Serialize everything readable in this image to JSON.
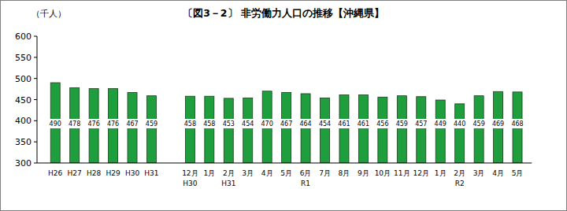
{
  "chart_data": {
    "type": "bar",
    "title": "〔図3－2〕 非労働力人口の推移【沖縄県】",
    "y_label": "（千人）",
    "categories": [
      "H26",
      "H27",
      "H28",
      "H29",
      "H30",
      "H31",
      null,
      "12月\nH30",
      "1月",
      "2月\nH31",
      "3月",
      "4月",
      "5月",
      "6月\nR1",
      "7月",
      "8月",
      "9月",
      "10月",
      "11月",
      "12月",
      "1月",
      "2月\nR2",
      "3月",
      "4月",
      "5月"
    ],
    "values": [
      490,
      478,
      476,
      476,
      467,
      459,
      null,
      458,
      458,
      453,
      454,
      470,
      467,
      464,
      454,
      461,
      461,
      456,
      459,
      457,
      449,
      440,
      459,
      469,
      468
    ],
    "color": "#1e9e3c",
    "ylim": [
      300,
      600
    ],
    "yticks": [
      300,
      350,
      400,
      450,
      500,
      550,
      600
    ],
    "grid": false,
    "data_labels": true
  }
}
